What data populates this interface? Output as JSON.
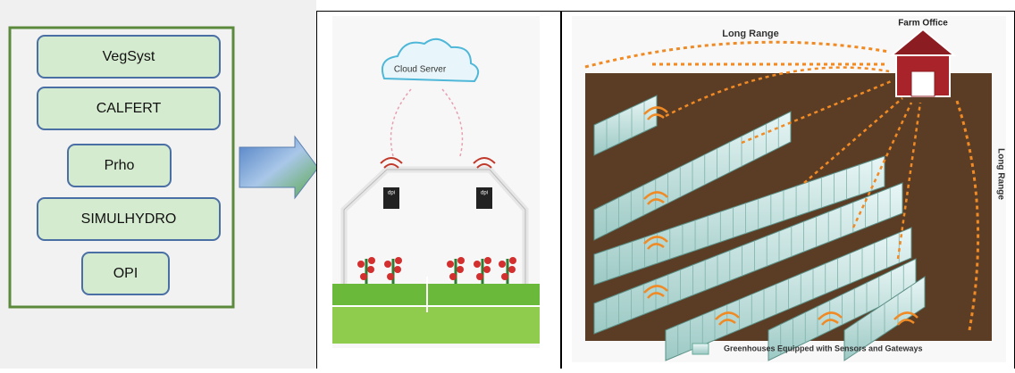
{
  "models": [
    "VegSyst",
    "CALFERT",
    "Prho",
    "SIMULHYDRO",
    "OPI"
  ],
  "middle_panel": {
    "cloud": "Cloud Server",
    "sensors": [
      "dpi",
      "dpi"
    ]
  },
  "right_panel": {
    "farm_office": "Farm Office",
    "long_range_top": "Long Range",
    "long_range_side": "Long Range",
    "legend": "Greenhouses Equipped with Sensors and Gateways"
  }
}
